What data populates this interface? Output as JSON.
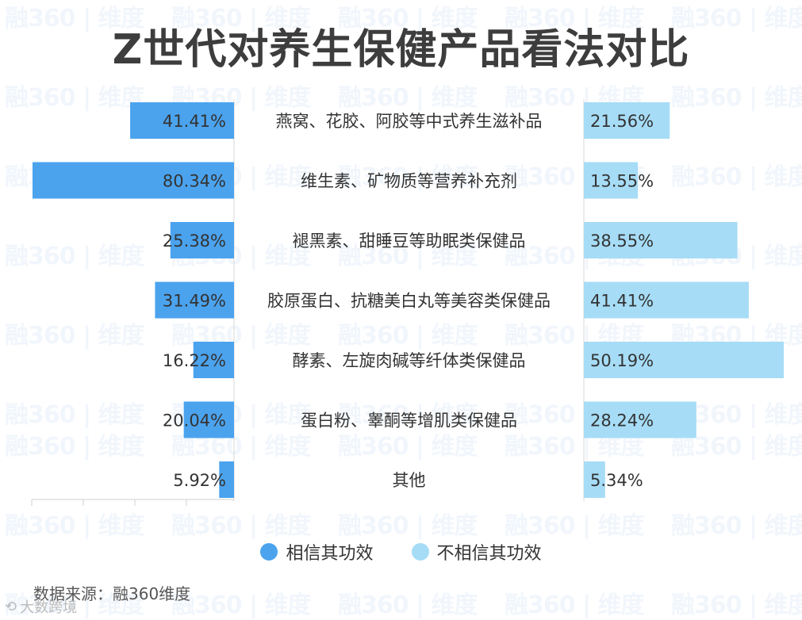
{
  "title": "Z世代对养生保健产品看法对比",
  "source": "数据来源：融360维度",
  "brand": "大数跨境",
  "watermark": "融360 | 维度",
  "colors": {
    "believe": "#4ba3ee",
    "not_believe": "#a6dcf6"
  },
  "chart_data": {
    "type": "bar",
    "orientation": "horizontal-butterfly",
    "categories": [
      "燕窝、花胶、阿胶等中式养生滋补品",
      "维生素、矿物质等营养补充剂",
      "褪黑素、甜睡豆等助眠类保健品",
      "胶原蛋白、抗糖美白丸等美容类保健品",
      "酵素、左旋肉碱等纤体类保健品",
      "蛋白粉、睾酮等增肌类保健品",
      "其他"
    ],
    "series": [
      {
        "name": "相信其功效",
        "values": [
          41.41,
          80.34,
          25.38,
          31.49,
          16.22,
          20.04,
          5.92
        ]
      },
      {
        "name": "不相信其功效",
        "values": [
          21.56,
          13.55,
          38.55,
          41.41,
          50.19,
          28.24,
          5.34
        ]
      }
    ],
    "value_labels": {
      "left": [
        "41.41%",
        "80.34%",
        "25.38%",
        "31.49%",
        "16.22%",
        "20.04%",
        "5.92%"
      ],
      "right": [
        "21.56%",
        "13.55%",
        "38.55%",
        "41.41%",
        "50.19%",
        "28.24%",
        "5.34%"
      ]
    },
    "legend": [
      "相信其功效",
      "不相信其功效"
    ],
    "legend_position": "bottom",
    "grid": false
  }
}
